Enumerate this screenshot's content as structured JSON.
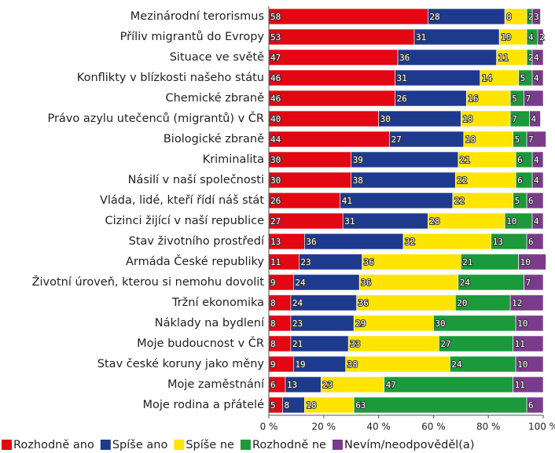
{
  "chart_data": {
    "type": "stacked_barh",
    "categories": [
      "Mezinárodní terorismus",
      "Příliv migrantů do Evropy",
      "Situace ve světě",
      "Konflikty v blízkosti našeho státu",
      "Chemické zbraně",
      "Právo azylu utečenců (migrantů) v ČR",
      "Biologické zbraně",
      "Kriminalita",
      "Násilí v naší společnosti",
      "Vláda, lidé, kteří řídí náš stát",
      "Cizinci žijící v naší republice",
      "Stav životního prostředí",
      "Armáda České republiky",
      "Životní úroveň, kterou si nemohu dovolit",
      "Tržní ekonomika",
      "Náklady na bydlení",
      "Moje budoucnost v ČR",
      "Stav české koruny jako měny",
      "Moje zaměstnání",
      "Moje rodina a přátelé"
    ],
    "series": [
      {
        "name": "Rozhodně ano",
        "color": "#e30613",
        "values": [
          58,
          53,
          47,
          46,
          46,
          40,
          44,
          30,
          30,
          26,
          27,
          13,
          11,
          9,
          8,
          8,
          8,
          9,
          6,
          5
        ]
      },
      {
        "name": "Spíše ano",
        "color": "#1d3a8f",
        "values": [
          28,
          31,
          36,
          31,
          26,
          30,
          27,
          39,
          38,
          41,
          31,
          36,
          23,
          24,
          24,
          23,
          21,
          19,
          13,
          8
        ]
      },
      {
        "name": "Spíše ne",
        "color": "#ffe400",
        "values": [
          8,
          10,
          11,
          14,
          16,
          18,
          18,
          21,
          22,
          22,
          28,
          32,
          36,
          36,
          36,
          29,
          33,
          38,
          23,
          18
        ]
      },
      {
        "name": "Rozhodně ne",
        "color": "#1a9a3a",
        "values": [
          2,
          4,
          2,
          5,
          5,
          7,
          5,
          6,
          6,
          5,
          10,
          13,
          21,
          24,
          20,
          30,
          27,
          24,
          47,
          63
        ]
      },
      {
        "name": "Nevím/neodpověděl(a)",
        "color": "#7b3b8c",
        "values": [
          3,
          2,
          4,
          4,
          7,
          4,
          7,
          4,
          4,
          6,
          4,
          6,
          10,
          7,
          12,
          10,
          11,
          10,
          11,
          6
        ]
      }
    ],
    "xlim": [
      0,
      100
    ],
    "xticks": [
      {
        "value": 0,
        "label": "0 %"
      },
      {
        "value": 20,
        "label": "20 %"
      },
      {
        "value": 40,
        "label": "40 %"
      },
      {
        "value": 60,
        "label": "60 %"
      },
      {
        "value": 80,
        "label": "80 %"
      },
      {
        "value": 100,
        "label": "100 %"
      }
    ],
    "legend": "bottom"
  }
}
